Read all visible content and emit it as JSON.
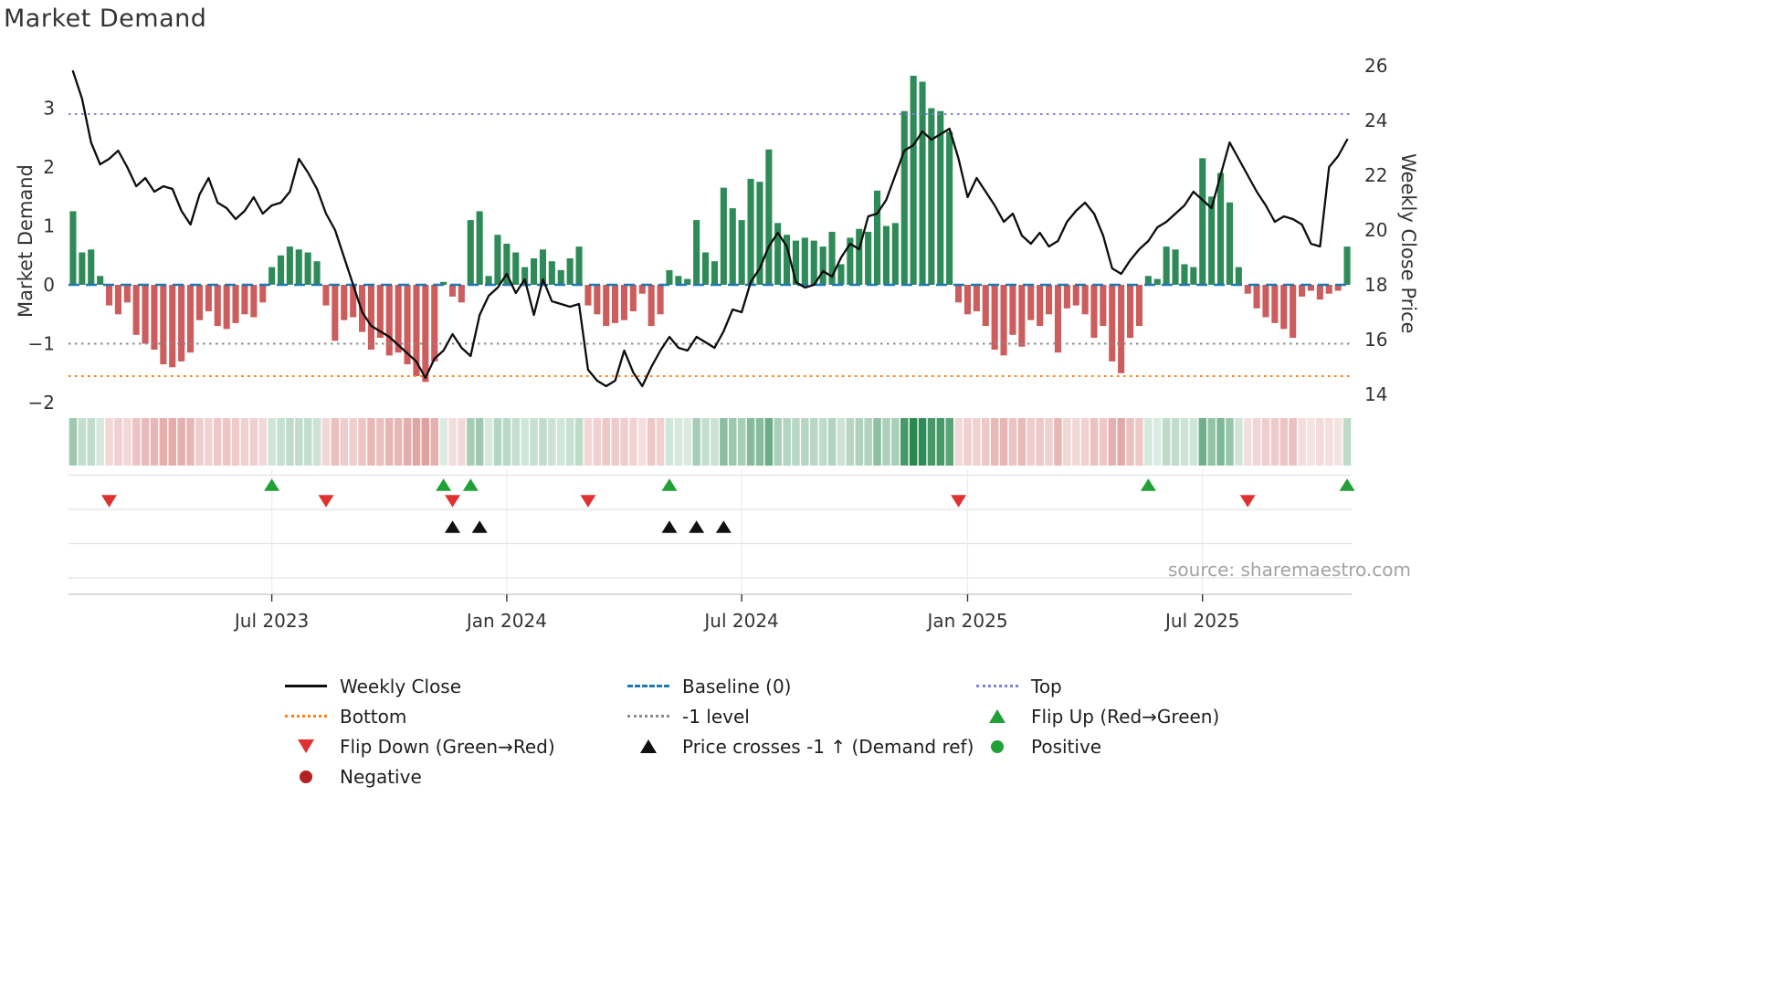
{
  "title": "Market Demand",
  "source": "source: sharemaestro.com",
  "axes": {
    "left_label": "Market Demand",
    "right_label": "Weekly Close Price",
    "left_ticks": [
      {
        "v": 3,
        "label": "3"
      },
      {
        "v": 2,
        "label": "2"
      },
      {
        "v": 1,
        "label": "1"
      },
      {
        "v": 0,
        "label": "0"
      },
      {
        "v": -1,
        "label": "−1"
      },
      {
        "v": -2,
        "label": "−2"
      }
    ],
    "right_ticks": [
      {
        "v": 26,
        "label": "26"
      },
      {
        "v": 24,
        "label": "24"
      },
      {
        "v": 22,
        "label": "22"
      },
      {
        "v": 20,
        "label": "20"
      },
      {
        "v": 18,
        "label": "18"
      },
      {
        "v": 16,
        "label": "16"
      },
      {
        "v": 14,
        "label": "14"
      }
    ]
  },
  "colors": {
    "positive": "#2e8b57",
    "negative": "#cd5c5c",
    "line": "#0d0d0d",
    "baseline": "#1f77b4",
    "top": "#8080d9",
    "bottom": "#ff7f0e",
    "minus1": "#8c8c8c",
    "flip_up": "#22a038",
    "flip_down": "#e03131",
    "cross": "#111111",
    "grid": "#e3e3e3",
    "axisline": "#cfcfcf"
  },
  "chart_data": {
    "type": "bar+line",
    "title": "Market Demand",
    "x_unit": "week",
    "n_weeks": 142,
    "demand_axis": {
      "label": "Market Demand",
      "ticks": [
        3,
        2,
        1,
        0,
        -1,
        -2
      ],
      "range": [
        -2.15,
        4.0
      ]
    },
    "price_axis": {
      "label": "Weekly Close Price",
      "ticks": [
        26,
        24,
        22,
        20,
        18,
        16,
        14
      ],
      "range": [
        13.3,
        26.3
      ]
    },
    "reference_lines": {
      "baseline": 0,
      "top": 2.9,
      "bottom": -1.55,
      "minus1": -1
    },
    "x_tick_labels": [
      "Jul 2023",
      "Jan 2024",
      "Jul 2024",
      "Jan 2025",
      "Jul 2025"
    ],
    "x_tick_indices": [
      22,
      48,
      74,
      99,
      125
    ],
    "legend_position": "bottom",
    "grid": "off in main panel, light rows in marker panel",
    "heatmap_strip": "one cell per week, red/green tint by demand sign and magnitude",
    "series": [
      {
        "name": "Market Demand",
        "type": "bar",
        "values": [
          1.25,
          0.55,
          0.6,
          0.15,
          -0.35,
          -0.5,
          -0.3,
          -0.85,
          -1.0,
          -1.1,
          -1.35,
          -1.4,
          -1.3,
          -1.15,
          -0.6,
          -0.45,
          -0.7,
          -0.75,
          -0.65,
          -0.5,
          -0.55,
          -0.3,
          0.3,
          0.5,
          0.65,
          0.6,
          0.55,
          0.4,
          -0.35,
          -0.95,
          -0.6,
          -0.55,
          -0.8,
          -1.1,
          -0.9,
          -1.2,
          -1.15,
          -1.35,
          -1.55,
          -1.65,
          -1.3,
          0.05,
          -0.2,
          -0.3,
          1.1,
          1.25,
          0.15,
          0.85,
          0.7,
          0.55,
          0.3,
          0.45,
          0.6,
          0.4,
          0.25,
          0.45,
          0.65,
          -0.35,
          -0.5,
          -0.7,
          -0.65,
          -0.6,
          -0.45,
          -0.15,
          -0.7,
          -0.5,
          0.25,
          0.15,
          0.1,
          1.1,
          0.55,
          0.4,
          1.65,
          1.3,
          1.1,
          1.8,
          1.75,
          2.3,
          1.05,
          0.85,
          0.75,
          0.8,
          0.75,
          0.65,
          0.9,
          0.35,
          0.8,
          0.95,
          0.9,
          1.6,
          1.0,
          1.05,
          2.95,
          3.55,
          3.45,
          3.0,
          2.95,
          2.6,
          -0.3,
          -0.5,
          -0.45,
          -0.7,
          -1.1,
          -1.2,
          -0.85,
          -1.05,
          -0.6,
          -0.7,
          -0.5,
          -1.15,
          -0.4,
          -0.35,
          -0.5,
          -0.9,
          -0.7,
          -1.3,
          -1.5,
          -0.9,
          -0.7,
          0.15,
          0.1,
          0.65,
          0.6,
          0.35,
          0.3,
          2.15,
          1.5,
          1.9,
          1.4,
          0.3,
          -0.15,
          -0.4,
          -0.55,
          -0.65,
          -0.75,
          -0.9,
          -0.2,
          -0.1,
          -0.25,
          -0.15,
          -0.1,
          0.65
        ]
      },
      {
        "name": "Weekly Close",
        "type": "line",
        "values": [
          25.8,
          24.8,
          23.2,
          22.4,
          22.6,
          22.9,
          22.3,
          21.6,
          21.9,
          21.4,
          21.6,
          21.5,
          20.7,
          20.2,
          21.3,
          21.9,
          21.0,
          20.8,
          20.4,
          20.7,
          21.2,
          20.6,
          20.9,
          21.0,
          21.4,
          22.6,
          22.1,
          21.5,
          20.6,
          20.0,
          19.0,
          18.0,
          17.0,
          16.5,
          16.3,
          16.1,
          15.8,
          15.5,
          15.2,
          14.6,
          15.3,
          15.6,
          16.2,
          15.7,
          15.4,
          16.9,
          17.6,
          17.9,
          18.4,
          17.7,
          18.2,
          16.9,
          18.2,
          17.4,
          17.3,
          17.2,
          17.3,
          14.9,
          14.5,
          14.3,
          14.5,
          15.6,
          14.8,
          14.3,
          15.0,
          15.6,
          16.1,
          15.7,
          15.6,
          16.1,
          15.9,
          15.7,
          16.3,
          17.1,
          17.0,
          18.1,
          18.6,
          19.4,
          19.9,
          19.4,
          18.1,
          17.9,
          18.0,
          18.5,
          18.3,
          19.0,
          19.5,
          19.3,
          20.5,
          20.6,
          21.1,
          22.0,
          22.9,
          23.1,
          23.6,
          23.3,
          23.5,
          23.7,
          22.6,
          21.2,
          21.9,
          21.4,
          20.9,
          20.3,
          20.6,
          19.8,
          19.5,
          19.9,
          19.4,
          19.6,
          20.3,
          20.7,
          21.0,
          20.6,
          19.8,
          18.6,
          18.4,
          18.9,
          19.3,
          19.6,
          20.1,
          20.3,
          20.6,
          20.9,
          21.4,
          21.1,
          20.8,
          22.0,
          23.2,
          22.6,
          22.0,
          21.4,
          20.9,
          20.3,
          20.5,
          20.4,
          20.2,
          19.5,
          19.4,
          22.3,
          22.7,
          23.3
        ]
      }
    ],
    "markers": {
      "flip_up": [
        22,
        41,
        44,
        66,
        119,
        141
      ],
      "flip_down": [
        4,
        28,
        42,
        57,
        98,
        130
      ],
      "price_cross_up": [
        42,
        45,
        66,
        69,
        72
      ]
    }
  },
  "legend": {
    "items": [
      {
        "swatch": "line",
        "color": "#0d0d0d",
        "label": "Weekly Close"
      },
      {
        "swatch": "dash",
        "color": "#1f77b4",
        "label": "Baseline (0)"
      },
      {
        "swatch": "dot",
        "color": "#8080d9",
        "label": "Top"
      },
      {
        "swatch": "dot",
        "color": "#ff7f0e",
        "label": "Bottom"
      },
      {
        "swatch": "dot",
        "color": "#8c8c8c",
        "label": "-1 level"
      },
      {
        "swatch": "tri-up",
        "color": "#22a038",
        "label": "Flip Up (Red→Green)"
      },
      {
        "swatch": "tri-down",
        "color": "#e03131",
        "label": "Flip Down (Green→Red)"
      },
      {
        "swatch": "tri-up",
        "color": "#111111",
        "label": "Price crosses -1 ↑ (Demand ref)"
      },
      {
        "swatch": "circle",
        "color": "#22a038",
        "label": "Positive"
      },
      {
        "swatch": "circle",
        "color": "#b22222",
        "label": "Negative"
      }
    ]
  }
}
